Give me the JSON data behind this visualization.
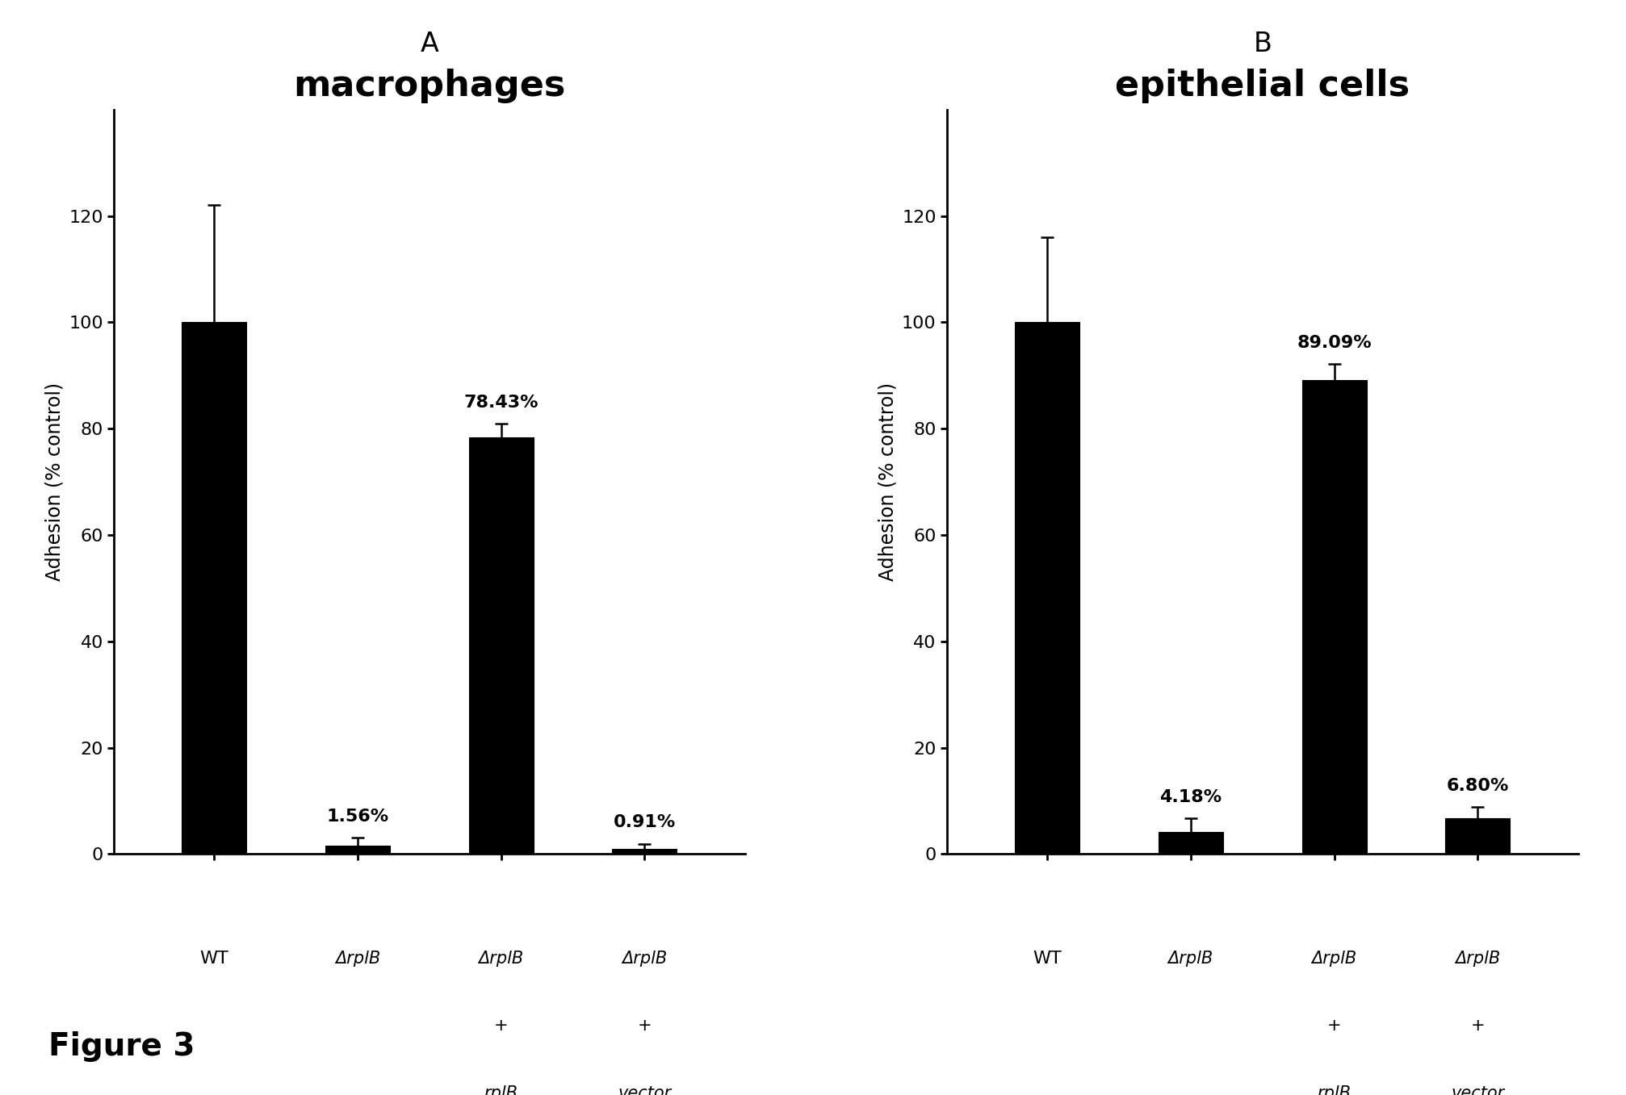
{
  "panel_A": {
    "title": "macrophages",
    "panel_label": "A",
    "categories": [
      "WT",
      "ΔrplB",
      "ΔrplB\n+\nrplB",
      "ΔrplB\n+\nvector"
    ],
    "values": [
      100,
      1.56,
      78.43,
      0.91
    ],
    "errors": [
      22,
      1.5,
      2.5,
      1.0
    ],
    "percentages": [
      "",
      "1.56%",
      "78.43%",
      "0.91%"
    ],
    "ylabel": "Adhesion (% control)",
    "ylim": [
      0,
      140
    ],
    "yticks": [
      0,
      20,
      40,
      60,
      80,
      100,
      120
    ]
  },
  "panel_B": {
    "title": "epithelial cells",
    "panel_label": "B",
    "categories": [
      "WT",
      "ΔrplB",
      "ΔrplB\n+\nrplB",
      "ΔrplB\n+\nvector"
    ],
    "values": [
      100,
      4.18,
      89.09,
      6.8
    ],
    "errors": [
      16,
      2.5,
      3.0,
      2.0
    ],
    "percentages": [
      "",
      "4.18%",
      "89.09%",
      "6.80%"
    ],
    "ylabel": "Adhesion (% control)",
    "ylim": [
      0,
      140
    ],
    "yticks": [
      0,
      20,
      40,
      60,
      80,
      100,
      120
    ]
  },
  "figure_label": "Figure 3",
  "bar_color": "#000000",
  "bar_width": 0.45,
  "figure_label_fontsize": 28,
  "title_fontsize": 32,
  "panel_label_fontsize": 24,
  "axis_label_fontsize": 17,
  "tick_fontsize": 16,
  "pct_fontsize": 16,
  "xtick_fontsize": 15
}
